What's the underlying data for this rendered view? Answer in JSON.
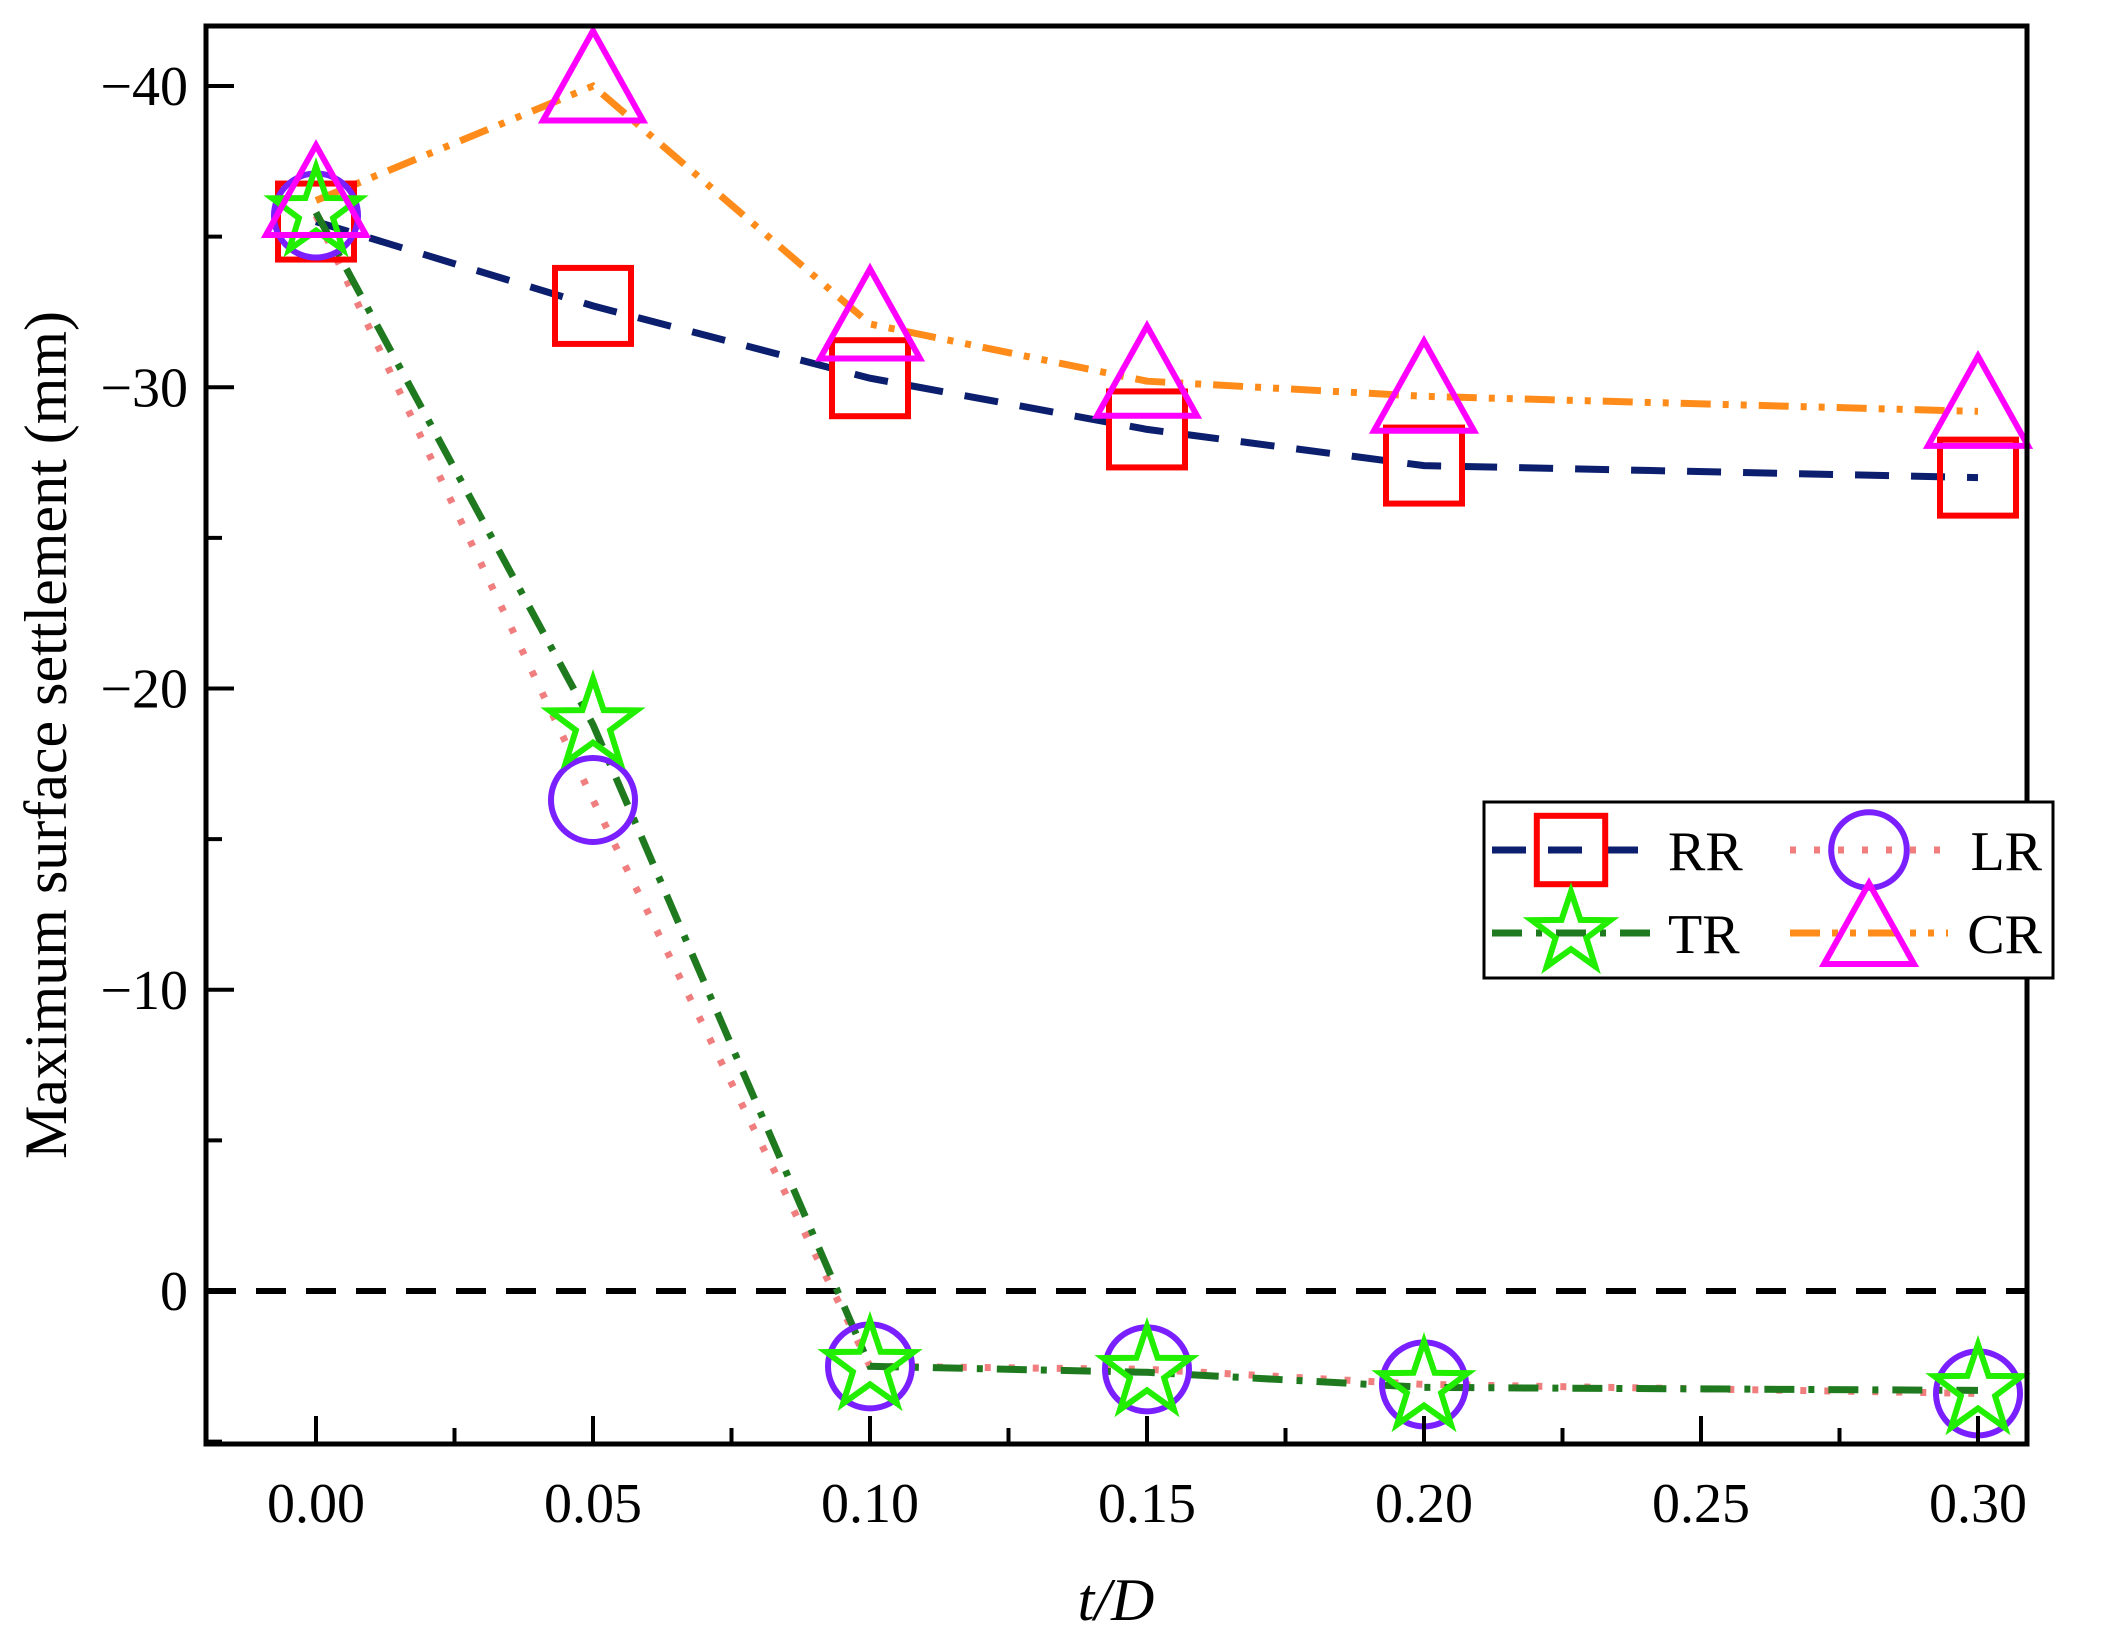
{
  "chart_data": {
    "type": "line",
    "title": "",
    "xlabel": "t/D",
    "ylabel": "Maximum surface settlement (mm)",
    "x": [
      0.0,
      0.05,
      0.1,
      0.15,
      0.2,
      0.3
    ],
    "x_tick_labels": [
      "0.00",
      "0.05",
      "0.10",
      "0.15",
      "0.20",
      "0.25",
      "0.30"
    ],
    "y_tick_labels": [
      "−40",
      "−30",
      "−20",
      "−10",
      "0"
    ],
    "y_ticks": [
      -40,
      -30,
      -20,
      -10,
      0
    ],
    "ylim": [
      -42,
      5
    ],
    "y_inverted": true,
    "reference_line_y": 0,
    "legend_position": "right-middle",
    "series": [
      {
        "name": "RR",
        "values": [
          -35.5,
          -32.7,
          -30.3,
          -28.6,
          -27.4,
          -27.0
        ],
        "line_color": "#0b1f6e",
        "marker_color": "#ff0000",
        "marker": "square",
        "line_style": "dashed"
      },
      {
        "name": "LR",
        "values": [
          -35.7,
          -16.3,
          2.5,
          2.6,
          3.1,
          3.4
        ],
        "line_color": "#f07e7e",
        "marker_color": "#7a1fff",
        "marker": "circle",
        "line_style": "dotted"
      },
      {
        "name": "TR",
        "values": [
          -35.8,
          -18.8,
          2.5,
          2.7,
          3.2,
          3.3
        ],
        "line_color": "#1f7a1f",
        "marker_color": "#22ee00",
        "marker": "star",
        "line_style": "dashdot"
      },
      {
        "name": "CR",
        "values": [
          -36.2,
          -40.0,
          -32.1,
          -30.2,
          -29.7,
          -29.2
        ],
        "line_color": "#ff8c1a",
        "marker_color": "#ff00ff",
        "marker": "triangle",
        "line_style": "dashdotdot"
      }
    ]
  }
}
